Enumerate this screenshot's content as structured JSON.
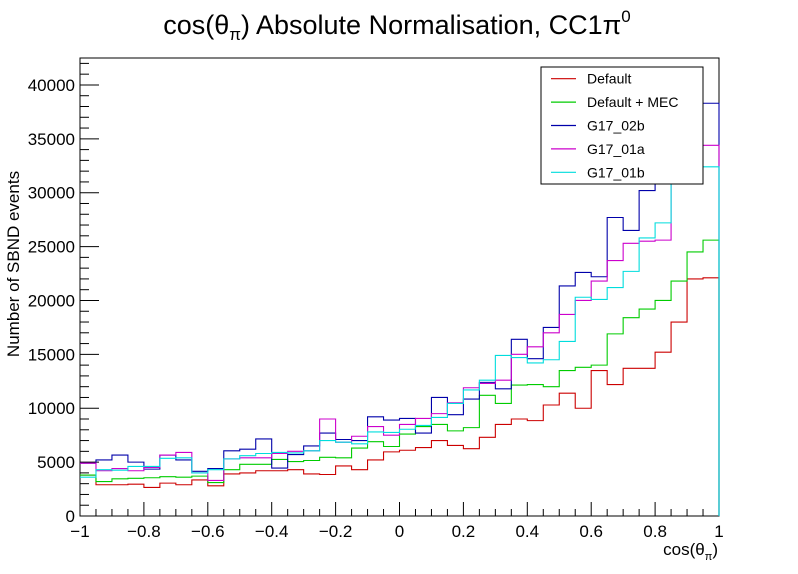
{
  "chart_data": {
    "type": "line",
    "title": "cos(θ",
    "title_sub": "π",
    "title_rest": ") Absolute Normalisation, CC1π",
    "title_sup": "0",
    "xlabel": "cos(θ",
    "xlabel_sub": "π",
    "xlabel_close": ")",
    "ylabel": "Number of SBND events",
    "xlim": [
      -1,
      1
    ],
    "ylim": [
      0,
      42500
    ],
    "x_ticks": [
      -1,
      -0.8,
      -0.6,
      -0.4,
      -0.2,
      0,
      0.2,
      0.4,
      0.6,
      0.8,
      1
    ],
    "x_tick_labels": [
      "−1",
      "−0.8",
      "−0.6",
      "−0.4",
      "−0.2",
      "0",
      "0.2",
      "0.4",
      "0.6",
      "0.8",
      "1"
    ],
    "y_ticks": [
      0,
      5000,
      10000,
      15000,
      20000,
      25000,
      30000,
      35000,
      40000
    ],
    "y_tick_labels": [
      "0",
      "5000",
      "10000",
      "15000",
      "20000",
      "25000",
      "30000",
      "35000",
      "40000"
    ],
    "bin_edges_start": -1,
    "bin_width": 0.05,
    "legend_position": "top-right",
    "series": [
      {
        "name": "Default",
        "color": "#cc0000",
        "values": [
          3800,
          2900,
          2900,
          2950,
          2650,
          3050,
          2900,
          3350,
          2800,
          3900,
          4000,
          4200,
          4200,
          4300,
          3900,
          3850,
          4650,
          4300,
          5200,
          5950,
          6100,
          6350,
          7000,
          6550,
          6250,
          7300,
          8500,
          9000,
          8850,
          10300,
          11400,
          10000,
          13500,
          12200,
          13700,
          13700,
          15200,
          18000,
          22000,
          22100
        ]
      },
      {
        "name": "Default + MEC",
        "color": "#00cc00",
        "values": [
          3800,
          3200,
          3450,
          3500,
          3550,
          3650,
          3600,
          3700,
          3100,
          4300,
          4800,
          4800,
          5250,
          5050,
          5150,
          5450,
          5400,
          6300,
          6900,
          6450,
          7600,
          8300,
          8500,
          7900,
          8200,
          11200,
          10450,
          12150,
          12200,
          12000,
          13500,
          13800,
          14000,
          16900,
          18400,
          19200,
          20000,
          21800,
          24500,
          25600
        ]
      },
      {
        "name": "G17_02b",
        "color": "#0000aa",
        "values": [
          4900,
          5200,
          5650,
          5000,
          4350,
          5650,
          5200,
          4150,
          4400,
          6050,
          6200,
          7150,
          4450,
          5700,
          6500,
          7700,
          7100,
          7000,
          9200,
          8900,
          9050,
          7700,
          11000,
          9400,
          10850,
          12400,
          11800,
          16400,
          14600,
          17500,
          21350,
          22600,
          22200,
          27700,
          26500,
          30200,
          33200,
          37500,
          38300,
          38300
        ]
      },
      {
        "name": "G17_01a",
        "color": "#cc00cc",
        "values": [
          4900,
          4200,
          4400,
          4200,
          4500,
          5650,
          5900,
          4000,
          3300,
          5300,
          5400,
          5400,
          5800,
          6000,
          6050,
          9000,
          6850,
          7400,
          8300,
          7500,
          8500,
          9050,
          9500,
          10500,
          11900,
          12300,
          12600,
          15000,
          15700,
          17000,
          18700,
          20000,
          21800,
          23700,
          25300,
          25500,
          25600,
          34200,
          34400,
          34400
        ]
      },
      {
        "name": "G17_01b",
        "color": "#00dddd",
        "values": [
          3600,
          4300,
          4250,
          4600,
          4600,
          5350,
          5400,
          4000,
          4300,
          5300,
          5600,
          5800,
          5900,
          5850,
          6050,
          7000,
          6850,
          6700,
          7800,
          7750,
          8050,
          8400,
          9150,
          10450,
          11700,
          12600,
          14900,
          14700,
          14200,
          14500,
          16200,
          20300,
          20100,
          21200,
          22700,
          25800,
          27200,
          32400,
          32400,
          32400
        ]
      }
    ]
  }
}
